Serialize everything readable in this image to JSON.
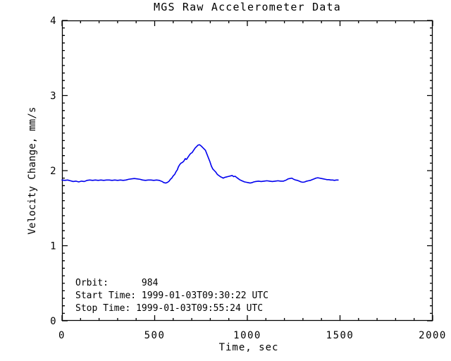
{
  "chart_data": {
    "type": "line",
    "title": "MGS Raw Accelerometer Data",
    "xlabel": "Time, sec",
    "ylabel": "Velocity Change, mm/s",
    "xlim": [
      0,
      2000
    ],
    "ylim": [
      0,
      4
    ],
    "xticks": [
      0,
      500,
      1000,
      1500,
      2000
    ],
    "yticks": [
      0,
      1,
      2,
      3,
      4
    ],
    "x_minor_per_major": 5,
    "y_minor_per_major": 10,
    "grid": false,
    "legend": "none",
    "line_color": "#0000ee",
    "axis_color": "#000000",
    "series": [
      {
        "name": "raw-accelerometer-velocity-change",
        "x": [
          0,
          15,
          30,
          45,
          60,
          75,
          90,
          105,
          120,
          135,
          150,
          165,
          180,
          195,
          210,
          225,
          240,
          255,
          270,
          285,
          300,
          315,
          330,
          345,
          360,
          375,
          390,
          405,
          420,
          435,
          450,
          465,
          480,
          495,
          510,
          525,
          540,
          550,
          560,
          570,
          578,
          585,
          592,
          600,
          608,
          615,
          622,
          628,
          635,
          642,
          650,
          658,
          665,
          672,
          680,
          688,
          695,
          702,
          710,
          718,
          726,
          734,
          742,
          750,
          758,
          766,
          774,
          782,
          790,
          798,
          806,
          814,
          822,
          830,
          838,
          846,
          854,
          862,
          870,
          878,
          886,
          894,
          902,
          910,
          918,
          926,
          934,
          942,
          950,
          958,
          966,
          975,
          985,
          995,
          1005,
          1015,
          1025,
          1035,
          1045,
          1060,
          1075,
          1090,
          1105,
          1120,
          1135,
          1150,
          1165,
          1180,
          1195,
          1210,
          1220,
          1230,
          1240,
          1250,
          1260,
          1270,
          1280,
          1290,
          1300,
          1310,
          1320,
          1330,
          1340,
          1350,
          1360,
          1370,
          1380,
          1390,
          1400,
          1410,
          1420,
          1430,
          1440,
          1450,
          1460,
          1470,
          1480,
          1490
        ],
        "y": [
          1.875,
          1.87,
          1.875,
          1.865,
          1.855,
          1.86,
          1.85,
          1.86,
          1.855,
          1.87,
          1.875,
          1.87,
          1.875,
          1.87,
          1.875,
          1.87,
          1.875,
          1.875,
          1.87,
          1.875,
          1.87,
          1.875,
          1.87,
          1.875,
          1.885,
          1.89,
          1.895,
          1.89,
          1.885,
          1.875,
          1.87,
          1.875,
          1.875,
          1.87,
          1.875,
          1.87,
          1.855,
          1.84,
          1.835,
          1.845,
          1.86,
          1.885,
          1.9,
          1.93,
          1.95,
          1.985,
          2.01,
          2.05,
          2.08,
          2.1,
          2.11,
          2.13,
          2.16,
          2.15,
          2.18,
          2.21,
          2.23,
          2.24,
          2.27,
          2.3,
          2.32,
          2.34,
          2.345,
          2.33,
          2.31,
          2.29,
          2.27,
          2.22,
          2.17,
          2.12,
          2.06,
          2.02,
          2.0,
          1.98,
          1.95,
          1.935,
          1.92,
          1.91,
          1.9,
          1.91,
          1.915,
          1.92,
          1.925,
          1.93,
          1.935,
          1.92,
          1.925,
          1.91,
          1.895,
          1.88,
          1.87,
          1.86,
          1.85,
          1.845,
          1.84,
          1.835,
          1.84,
          1.85,
          1.855,
          1.86,
          1.855,
          1.86,
          1.865,
          1.86,
          1.855,
          1.86,
          1.865,
          1.86,
          1.86,
          1.875,
          1.89,
          1.895,
          1.9,
          1.885,
          1.875,
          1.87,
          1.86,
          1.85,
          1.845,
          1.85,
          1.86,
          1.865,
          1.87,
          1.88,
          1.89,
          1.9,
          1.905,
          1.9,
          1.895,
          1.89,
          1.885,
          1.88,
          1.88,
          1.875,
          1.875,
          1.87,
          1.875,
          1.875
        ]
      }
    ],
    "annotations": [
      {
        "label": "orbit-line",
        "text": "Orbit:      984"
      },
      {
        "label": "start-time-line",
        "text": "Start Time: 1999-01-03T09:30:22 UTC"
      },
      {
        "label": "stop-time-line",
        "text": "Stop Time: 1999-01-03T09:55:24 UTC"
      }
    ]
  }
}
